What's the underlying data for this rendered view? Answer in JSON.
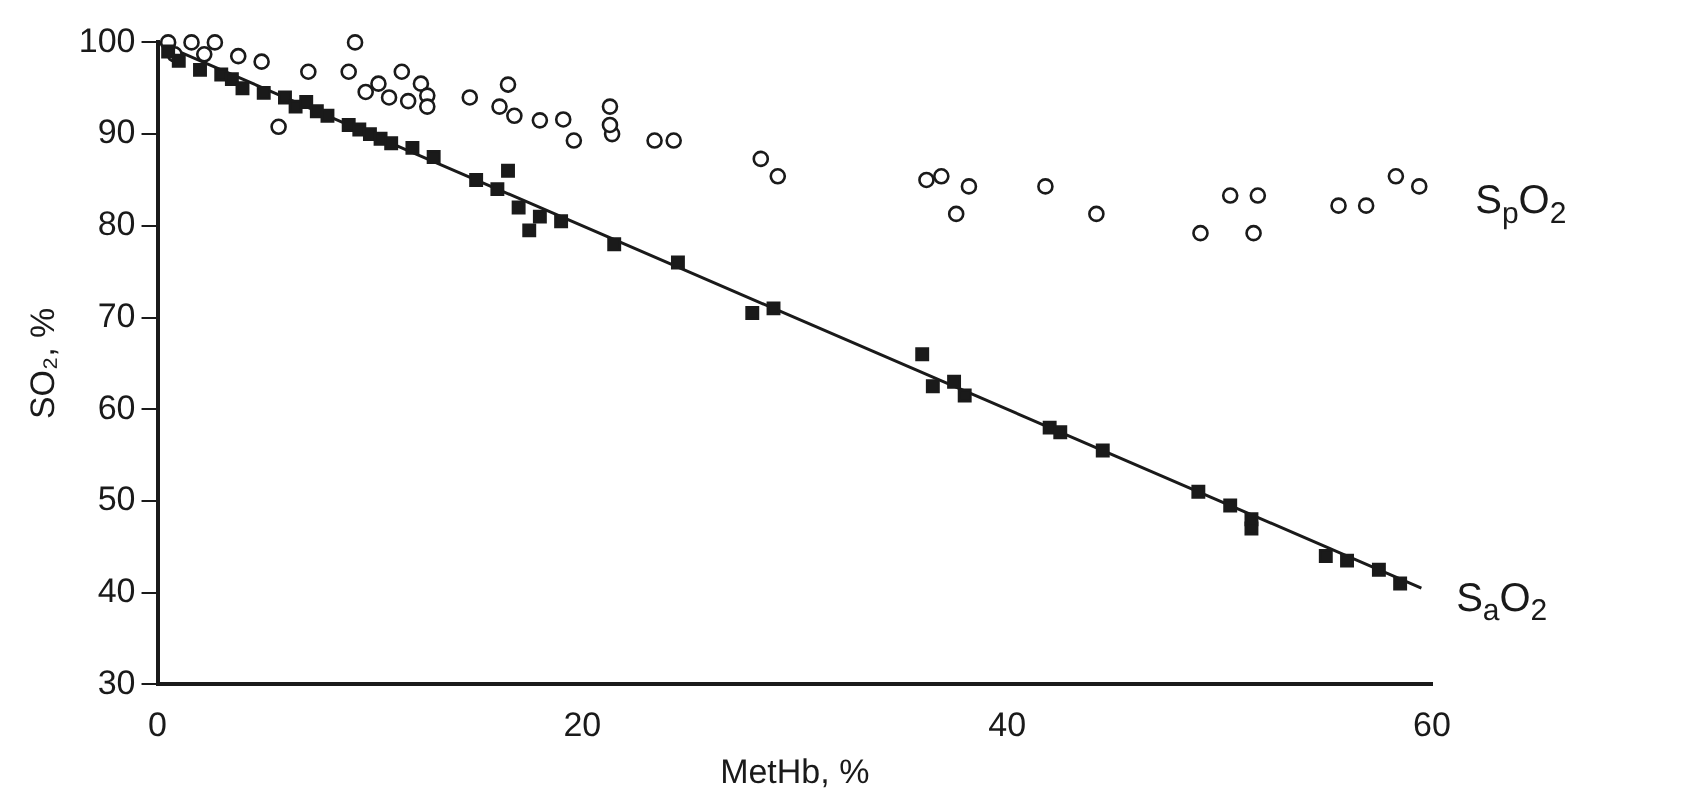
{
  "chart_data": {
    "type": "scatter",
    "xlabel": "MetHb, %",
    "ylabel": "SO₂, %",
    "xlim": [
      0,
      60
    ],
    "ylim": [
      30,
      100
    ],
    "xticks": [
      0,
      20,
      40,
      60
    ],
    "yticks": [
      30,
      40,
      50,
      60,
      70,
      80,
      90,
      100
    ],
    "grid": false,
    "legend": false,
    "series": [
      {
        "name": "S$_{p}$O$_{2}$",
        "color": "#1a1a1a",
        "marker": "circle",
        "x": [
          0.5,
          1.6,
          2.7,
          0.8,
          2.2,
          3.8,
          4.9,
          7.1,
          9,
          9.3,
          11.5,
          12.4,
          10.4,
          12.7,
          9.8,
          10.9,
          11.8,
          12.7,
          5.7,
          14.7,
          16.1,
          16.5,
          16.8,
          18,
          19.1,
          19.6,
          21.3,
          21.4,
          21.3,
          23.4,
          24.3,
          28.4,
          29.2,
          36.2,
          36.9,
          38.2,
          37.6,
          41.8,
          44.2,
          50.5,
          51.8,
          49.1,
          51.6,
          55.6,
          56.9,
          58.3,
          59.4
        ],
        "values": [
          100,
          100,
          100,
          98.7,
          98.7,
          98.5,
          97.9,
          96.8,
          96.8,
          100,
          96.8,
          95.5,
          95.5,
          94.2,
          94.6,
          94,
          93.6,
          93,
          90.8,
          94,
          93,
          95.4,
          92,
          91.5,
          91.6,
          89.3,
          93,
          90,
          91,
          89.3,
          89.3,
          87.3,
          85.4,
          85,
          85.4,
          84.3,
          81.3,
          84.3,
          81.3,
          83.3,
          83.3,
          79.2,
          79.2,
          82.2,
          82.2,
          85.4,
          84.3
        ]
      },
      {
        "name": "S$_{a}$O$_{2}$",
        "color": "#1a1a1a",
        "marker": "square",
        "x": [
          0.5,
          1,
          2,
          3,
          3.5,
          4,
          5,
          6,
          6.5,
          7,
          7.5,
          8,
          9,
          9.5,
          10,
          10.5,
          11,
          12,
          13,
          15,
          16.5,
          16,
          17,
          17.5,
          18,
          19,
          21.5,
          24.5,
          28,
          29,
          36,
          36.5,
          37.5,
          38,
          42,
          42.5,
          44.5,
          49,
          50.5,
          51.5,
          51.5,
          55,
          56,
          57.5,
          58.5
        ],
        "values": [
          99,
          98,
          97,
          96.5,
          96,
          95,
          94.5,
          94,
          93,
          93.5,
          92.5,
          92,
          91,
          90.5,
          90,
          89.5,
          89,
          88.5,
          87.5,
          85,
          86,
          84,
          82,
          79.5,
          81,
          80.5,
          78,
          76,
          70.5,
          71,
          66,
          62.5,
          63,
          61.5,
          58,
          57.5,
          55.5,
          51,
          49.5,
          48,
          47,
          44,
          43.5,
          42.5,
          41
        ]
      },
      {
        "type": "line",
        "color": "#1a1a1a",
        "x": [
          0,
          59.5
        ],
        "values": [
          100,
          40.5
        ]
      }
    ]
  }
}
